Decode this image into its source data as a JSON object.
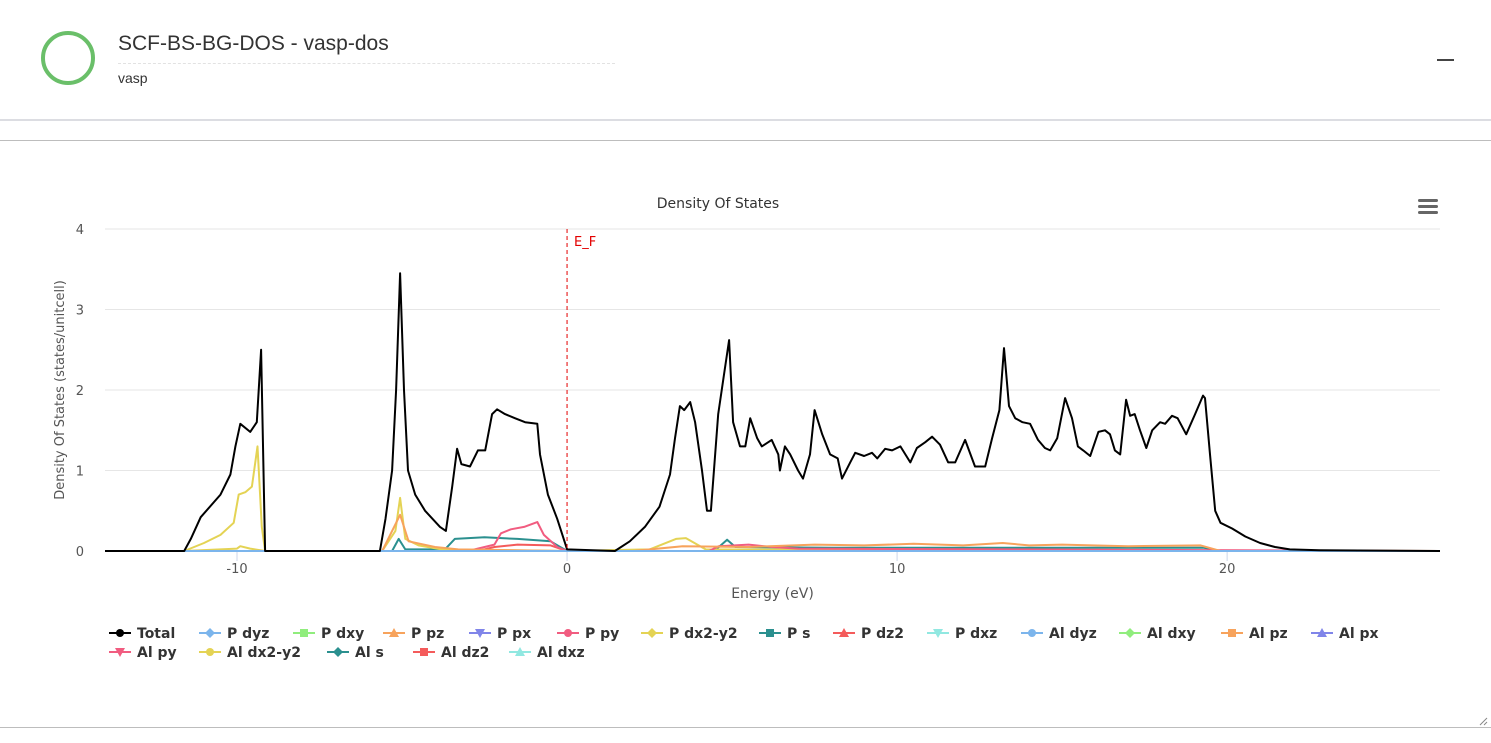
{
  "header": {
    "title": "SCF-BS-BG-DOS - vasp-dos",
    "subtitle": "vasp",
    "status_color": "#6abf69"
  },
  "chart_data": {
    "type": "line",
    "title": "Density Of States",
    "xlabel": "Energy (eV)",
    "ylabel": "Density Of States (states/unitcell)",
    "xlim": [
      -14,
      26.45
    ],
    "ylim": [
      0,
      4
    ],
    "xticks": [
      -10,
      0,
      10,
      20
    ],
    "yticks": [
      0,
      1,
      2,
      3,
      4
    ],
    "grid": "horizontal",
    "legend_placement": "bottom",
    "annotation": {
      "label": "E_F",
      "x": 0,
      "color": "#e30000",
      "style": "dashed"
    },
    "series": [
      {
        "name": "Total",
        "color": "#000000",
        "marker": "circle",
        "points": [
          [
            -14,
            0
          ],
          [
            -11.6,
            0
          ],
          [
            -11.4,
            0.15
          ],
          [
            -11.1,
            0.42
          ],
          [
            -10.5,
            0.7
          ],
          [
            -10.2,
            0.95
          ],
          [
            -10.05,
            1.3
          ],
          [
            -9.9,
            1.58
          ],
          [
            -9.6,
            1.48
          ],
          [
            -9.4,
            1.6
          ],
          [
            -9.27,
            2.5
          ],
          [
            -9.15,
            0
          ],
          [
            -5.67,
            0
          ],
          [
            -5.5,
            0.4
          ],
          [
            -5.3,
            1.0
          ],
          [
            -5.18,
            2.0
          ],
          [
            -5.06,
            3.45
          ],
          [
            -4.94,
            2.0
          ],
          [
            -4.82,
            1.0
          ],
          [
            -4.6,
            0.7
          ],
          [
            -4.3,
            0.5
          ],
          [
            -3.85,
            0.3
          ],
          [
            -3.67,
            0.25
          ],
          [
            -3.48,
            0.8
          ],
          [
            -3.33,
            1.27
          ],
          [
            -3.2,
            1.08
          ],
          [
            -2.94,
            1.05
          ],
          [
            -2.7,
            1.25
          ],
          [
            -2.48,
            1.25
          ],
          [
            -2.27,
            1.7
          ],
          [
            -2.12,
            1.76
          ],
          [
            -1.88,
            1.7
          ],
          [
            -1.58,
            1.65
          ],
          [
            -1.27,
            1.6
          ],
          [
            -0.9,
            1.58
          ],
          [
            -0.82,
            1.2
          ],
          [
            -0.58,
            0.7
          ],
          [
            -0.3,
            0.4
          ],
          [
            0,
            0.02
          ],
          [
            1.45,
            0
          ],
          [
            1.9,
            0.12
          ],
          [
            2.36,
            0.3
          ],
          [
            2.8,
            0.55
          ],
          [
            3.12,
            0.95
          ],
          [
            3.27,
            1.4
          ],
          [
            3.42,
            1.8
          ],
          [
            3.55,
            1.75
          ],
          [
            3.73,
            1.85
          ],
          [
            3.88,
            1.6
          ],
          [
            4.09,
            1.0
          ],
          [
            4.24,
            0.5
          ],
          [
            4.36,
            0.5
          ],
          [
            4.58,
            1.7
          ],
          [
            4.76,
            2.2
          ],
          [
            4.91,
            2.62
          ],
          [
            5.03,
            1.6
          ],
          [
            5.24,
            1.3
          ],
          [
            5.4,
            1.3
          ],
          [
            5.55,
            1.65
          ],
          [
            5.76,
            1.4
          ],
          [
            5.9,
            1.3
          ],
          [
            6.2,
            1.38
          ],
          [
            6.4,
            1.2
          ],
          [
            6.45,
            1.0
          ],
          [
            6.6,
            1.3
          ],
          [
            6.76,
            1.2
          ],
          [
            7.0,
            1.0
          ],
          [
            7.15,
            0.9
          ],
          [
            7.36,
            1.2
          ],
          [
            7.5,
            1.75
          ],
          [
            7.73,
            1.45
          ],
          [
            7.97,
            1.2
          ],
          [
            8.2,
            1.15
          ],
          [
            8.33,
            0.9
          ],
          [
            8.58,
            1.1
          ],
          [
            8.73,
            1.22
          ],
          [
            9.0,
            1.18
          ],
          [
            9.24,
            1.22
          ],
          [
            9.4,
            1.15
          ],
          [
            9.64,
            1.27
          ],
          [
            9.85,
            1.25
          ],
          [
            10.1,
            1.3
          ],
          [
            10.4,
            1.1
          ],
          [
            10.6,
            1.28
          ],
          [
            10.85,
            1.35
          ],
          [
            11.06,
            1.42
          ],
          [
            11.3,
            1.32
          ],
          [
            11.55,
            1.1
          ],
          [
            11.76,
            1.1
          ],
          [
            12.06,
            1.38
          ],
          [
            12.36,
            1.05
          ],
          [
            12.67,
            1.05
          ],
          [
            12.88,
            1.4
          ],
          [
            13.1,
            1.75
          ],
          [
            13.24,
            2.52
          ],
          [
            13.39,
            1.8
          ],
          [
            13.58,
            1.65
          ],
          [
            13.8,
            1.6
          ],
          [
            14.03,
            1.58
          ],
          [
            14.27,
            1.38
          ],
          [
            14.48,
            1.28
          ],
          [
            14.64,
            1.25
          ],
          [
            14.85,
            1.4
          ],
          [
            15.09,
            1.9
          ],
          [
            15.3,
            1.65
          ],
          [
            15.48,
            1.3
          ],
          [
            15.64,
            1.25
          ],
          [
            15.85,
            1.18
          ],
          [
            16.1,
            1.48
          ],
          [
            16.3,
            1.5
          ],
          [
            16.45,
            1.45
          ],
          [
            16.6,
            1.25
          ],
          [
            16.76,
            1.2
          ],
          [
            16.94,
            1.88
          ],
          [
            17.06,
            1.68
          ],
          [
            17.2,
            1.7
          ],
          [
            17.36,
            1.5
          ],
          [
            17.55,
            1.28
          ],
          [
            17.73,
            1.5
          ],
          [
            17.97,
            1.6
          ],
          [
            18.12,
            1.58
          ],
          [
            18.33,
            1.68
          ],
          [
            18.5,
            1.65
          ],
          [
            18.76,
            1.45
          ],
          [
            19.03,
            1.7
          ],
          [
            19.27,
            1.93
          ],
          [
            19.33,
            1.9
          ],
          [
            19.48,
            1.2
          ],
          [
            19.64,
            0.5
          ],
          [
            19.8,
            0.35
          ],
          [
            20.15,
            0.28
          ],
          [
            20.55,
            0.18
          ],
          [
            21.0,
            0.1
          ],
          [
            21.45,
            0.05
          ],
          [
            21.9,
            0.02
          ],
          [
            22.8,
            0.01
          ],
          [
            26.45,
            0
          ]
        ]
      },
      {
        "name": "P dyz",
        "color": "#7cb5ec",
        "marker": "diamond",
        "points": [
          [
            -14,
            0
          ],
          [
            26.45,
            0
          ]
        ]
      },
      {
        "name": "P dxy",
        "color": "#90ed7d",
        "marker": "square",
        "points": [
          [
            -14,
            0
          ],
          [
            26.45,
            0
          ]
        ]
      },
      {
        "name": "P pz",
        "color": "#f7a35c",
        "marker": "triangle",
        "points": [
          [
            -14,
            0
          ],
          [
            -5.6,
            0
          ],
          [
            -5.06,
            0.45
          ],
          [
            -4.8,
            0.12
          ],
          [
            -4.0,
            0.05
          ],
          [
            -3.3,
            0.02
          ],
          [
            0,
            0
          ],
          [
            2.0,
            0
          ],
          [
            3.5,
            0.06
          ],
          [
            5.5,
            0.05
          ],
          [
            7.5,
            0.08
          ],
          [
            9,
            0.07
          ],
          [
            10.5,
            0.09
          ],
          [
            12,
            0.07
          ],
          [
            13.2,
            0.1
          ],
          [
            14,
            0.07
          ],
          [
            15,
            0.08
          ],
          [
            17,
            0.06
          ],
          [
            19.2,
            0.07
          ],
          [
            19.8,
            0
          ],
          [
            26.45,
            0
          ]
        ]
      },
      {
        "name": "P px",
        "color": "#8085e9",
        "marker": "triangle-down",
        "points": [
          [
            -14,
            0
          ],
          [
            26.45,
            0
          ]
        ]
      },
      {
        "name": "P py",
        "color": "#f15c80",
        "marker": "circle",
        "points": [
          [
            -14,
            0
          ],
          [
            -3,
            0
          ],
          [
            -2.2,
            0.08
          ],
          [
            -2.0,
            0.22
          ],
          [
            -1.7,
            0.27
          ],
          [
            -1.3,
            0.3
          ],
          [
            -0.9,
            0.36
          ],
          [
            -0.7,
            0.2
          ],
          [
            -0.3,
            0.05
          ],
          [
            0,
            0
          ],
          [
            4.3,
            0
          ],
          [
            4.6,
            0.06
          ],
          [
            5.5,
            0.08
          ],
          [
            6.2,
            0.05
          ],
          [
            7,
            0.03
          ],
          [
            26.45,
            0
          ]
        ]
      },
      {
        "name": "P dx2-y2",
        "color": "#e4d354",
        "marker": "diamond",
        "points": [
          [
            -14,
            0
          ],
          [
            -11.6,
            0
          ],
          [
            -11,
            0.1
          ],
          [
            -10.5,
            0.2
          ],
          [
            -10.1,
            0.35
          ],
          [
            -9.95,
            0.7
          ],
          [
            -9.75,
            0.73
          ],
          [
            -9.55,
            0.8
          ],
          [
            -9.38,
            1.3
          ],
          [
            -9.25,
            0.3
          ],
          [
            -9.15,
            0
          ],
          [
            -5.6,
            0
          ],
          [
            -5.2,
            0.25
          ],
          [
            -5.06,
            0.66
          ],
          [
            -4.9,
            0.15
          ],
          [
            -4.5,
            0.07
          ],
          [
            -3.8,
            0.02
          ],
          [
            0,
            0
          ],
          [
            2.5,
            0.02
          ],
          [
            3.3,
            0.15
          ],
          [
            3.6,
            0.16
          ],
          [
            4.2,
            0.02
          ],
          [
            26.45,
            0
          ]
        ]
      },
      {
        "name": "P s",
        "color": "#2b908f",
        "marker": "square",
        "points": [
          [
            -14,
            0
          ],
          [
            -5.3,
            0
          ],
          [
            -5.1,
            0.15
          ],
          [
            -4.9,
            0.02
          ],
          [
            -3.7,
            0.02
          ],
          [
            -3.4,
            0.15
          ],
          [
            -2.5,
            0.17
          ],
          [
            -1.5,
            0.15
          ],
          [
            -0.5,
            0.12
          ],
          [
            0,
            0
          ],
          [
            4.4,
            0
          ],
          [
            4.6,
            0.05
          ],
          [
            4.85,
            0.14
          ],
          [
            5.1,
            0.05
          ],
          [
            8,
            0.04
          ],
          [
            15,
            0.04
          ],
          [
            19.3,
            0.04
          ],
          [
            19.8,
            0
          ],
          [
            26.45,
            0
          ]
        ]
      },
      {
        "name": "P dz2",
        "color": "#f45b5b",
        "marker": "triangle",
        "points": [
          [
            -14,
            0
          ],
          [
            -2.7,
            0
          ],
          [
            -2.2,
            0.05
          ],
          [
            -1.5,
            0.08
          ],
          [
            -0.5,
            0.07
          ],
          [
            0,
            0
          ],
          [
            26.45,
            0
          ]
        ]
      },
      {
        "name": "P dxz",
        "color": "#91e8e1",
        "marker": "triangle-down",
        "points": [
          [
            -14,
            0
          ],
          [
            26.45,
            0
          ]
        ]
      },
      {
        "name": "Al dyz",
        "color": "#7cb5ec",
        "marker": "circle",
        "points": [
          [
            -14,
            0
          ],
          [
            26.45,
            0
          ]
        ]
      },
      {
        "name": "Al dxy",
        "color": "#90ed7d",
        "marker": "diamond",
        "points": [
          [
            -14,
            0
          ],
          [
            26.45,
            0
          ]
        ]
      },
      {
        "name": "Al pz",
        "color": "#f7a35c",
        "marker": "square",
        "points": [
          [
            -14,
            0
          ],
          [
            26.45,
            0
          ]
        ]
      },
      {
        "name": "Al px",
        "color": "#8085e9",
        "marker": "triangle",
        "points": [
          [
            -14,
            0
          ],
          [
            26.45,
            0
          ]
        ]
      },
      {
        "name": "Al py",
        "color": "#f15c80",
        "marker": "triangle-down",
        "points": [
          [
            -14,
            0
          ],
          [
            26.45,
            0
          ]
        ]
      },
      {
        "name": "Al dx2-y2",
        "color": "#e4d354",
        "marker": "circle",
        "points": [
          [
            -14,
            0
          ],
          [
            -11.6,
            0
          ],
          [
            -10,
            0.03
          ],
          [
            -9.9,
            0.06
          ],
          [
            -9.6,
            0.03
          ],
          [
            -9.15,
            0
          ],
          [
            26.45,
            0
          ]
        ]
      },
      {
        "name": "Al s",
        "color": "#2b908f",
        "marker": "diamond",
        "points": [
          [
            -14,
            0
          ],
          [
            26.45,
            0
          ]
        ]
      },
      {
        "name": "Al dz2",
        "color": "#f45b5b",
        "marker": "square",
        "points": [
          [
            -14,
            0
          ],
          [
            26.45,
            0
          ]
        ]
      },
      {
        "name": "Al dxz",
        "color": "#91e8e1",
        "marker": "triangle",
        "points": [
          [
            -14,
            0
          ],
          [
            26.45,
            0
          ]
        ]
      }
    ]
  }
}
